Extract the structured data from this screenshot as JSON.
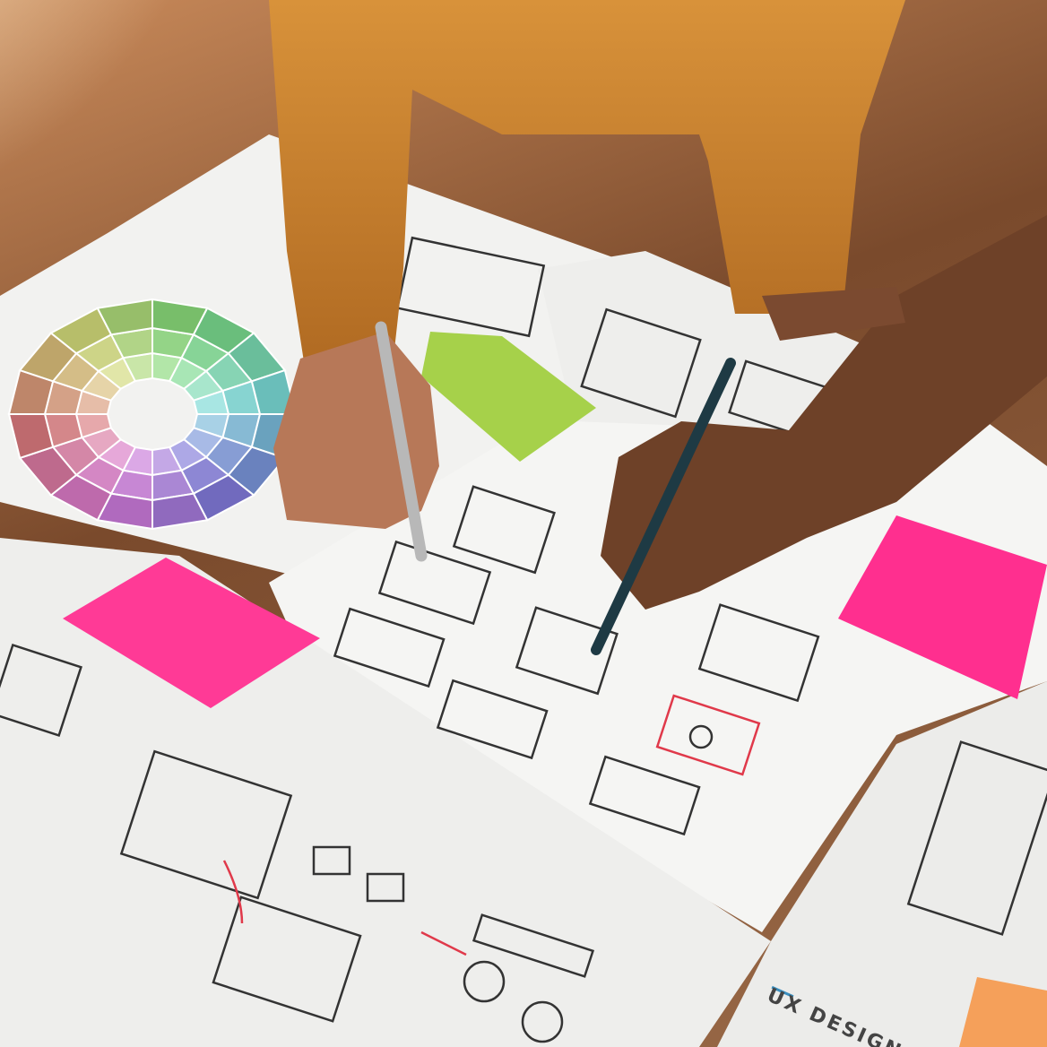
{
  "photo": {
    "scene": "ux-wireframe-sketching",
    "label_text": "UX DESIGN",
    "colors": {
      "table": "#8a5a3a",
      "paper": "#f2f2f0",
      "sweater": "#c9822e",
      "sticky_green": "#a6d14a",
      "sticky_pink": "#ff2f8f",
      "sticky_orange": "#f5a05a",
      "sketch_red": "#e0394a",
      "sketch_blue": "#2a4bb0"
    }
  }
}
